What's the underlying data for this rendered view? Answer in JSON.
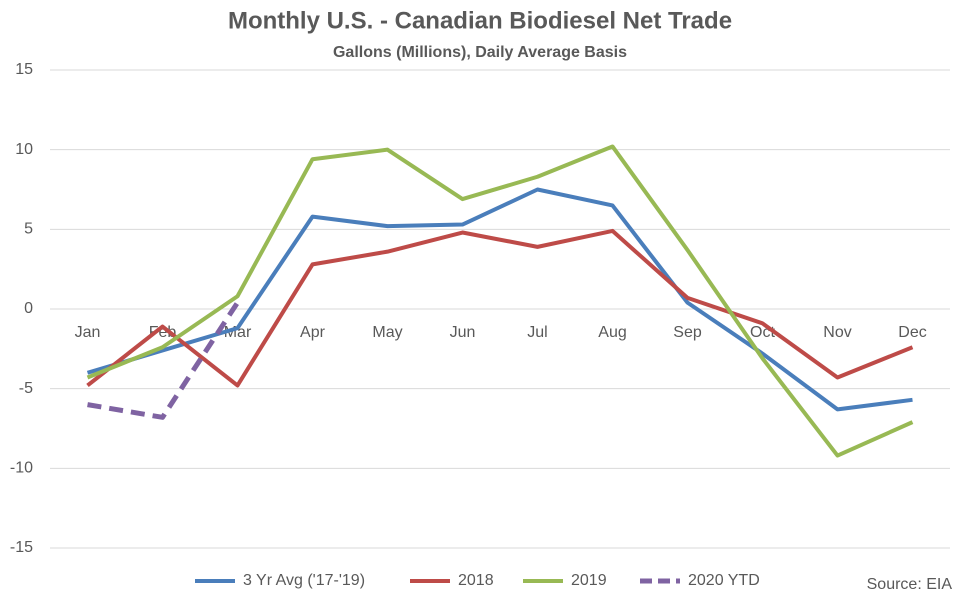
{
  "chart_data": {
    "type": "line",
    "title": "Monthly U.S. - Canadian Biodiesel Net Trade",
    "subtitle": "Gallons (Millions), Daily Average Basis",
    "annotation": "Source: EIA",
    "categories": [
      "Jan",
      "Feb",
      "Mar",
      "Apr",
      "May",
      "Jun",
      "Jul",
      "Aug",
      "Sep",
      "Oct",
      "Nov",
      "Dec"
    ],
    "series": [
      {
        "name": "3 Yr Avg ('17-'19)",
        "color": "#4a7ebb",
        "dashed": false,
        "values": [
          -4.0,
          -2.6,
          -1.2,
          5.8,
          5.2,
          5.3,
          7.5,
          6.5,
          0.4,
          -2.8,
          -6.3,
          -5.7
        ]
      },
      {
        "name": "2018",
        "color": "#be4b48",
        "dashed": false,
        "values": [
          -4.8,
          -1.1,
          -4.8,
          2.8,
          3.6,
          4.8,
          3.9,
          4.9,
          0.7,
          -0.9,
          -4.3,
          -2.4
        ]
      },
      {
        "name": "2019",
        "color": "#98b954",
        "dashed": false,
        "values": [
          -4.3,
          -2.4,
          0.8,
          9.4,
          10.0,
          6.9,
          8.3,
          10.2,
          3.7,
          -3.1,
          -9.2,
          -7.1
        ]
      },
      {
        "name": "2020 YTD",
        "color": "#7f63a2",
        "dashed": true,
        "values": [
          -6.0,
          -6.8,
          0.4,
          null,
          null,
          null,
          null,
          null,
          null,
          null,
          null,
          null
        ]
      }
    ],
    "ylim": [
      -15,
      15
    ],
    "yticks": [
      -15,
      -10,
      -5,
      0,
      5,
      10,
      15
    ],
    "grid": true,
    "legend": "bottom"
  }
}
